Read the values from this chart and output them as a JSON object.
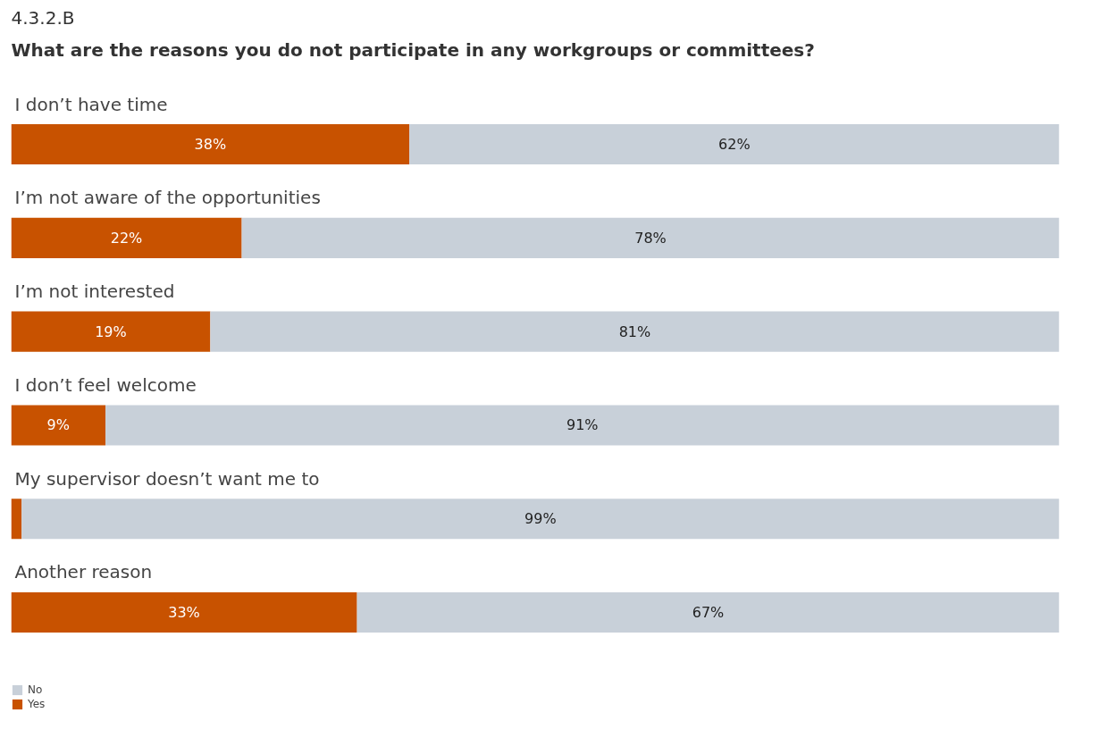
{
  "chart_data": {
    "type": "bar",
    "orientation": "horizontal",
    "stacked": true,
    "title": "4.3.2.B",
    "subtitle": "What are the reasons you do not participate in any workgroups or committees?",
    "categories": [
      "I don’t have time",
      "I’m not aware of the opportunities",
      "I’m not interested",
      "I don’t feel welcome",
      "My supervisor doesn’t want me to",
      "Another reason"
    ],
    "series": [
      {
        "name": "Yes",
        "color": "#c85200",
        "values": [
          38,
          22,
          19,
          9,
          1,
          33
        ],
        "value_labels": [
          "38%",
          "22%",
          "19%",
          "9%",
          null,
          "33%"
        ]
      },
      {
        "name": "No",
        "color": "#c8d0d9",
        "values": [
          62,
          78,
          81,
          91,
          99,
          67
        ],
        "value_labels": [
          "62%",
          "78%",
          "81%",
          "91%",
          "99%",
          "67%"
        ]
      }
    ],
    "legend": "bottom left"
  }
}
